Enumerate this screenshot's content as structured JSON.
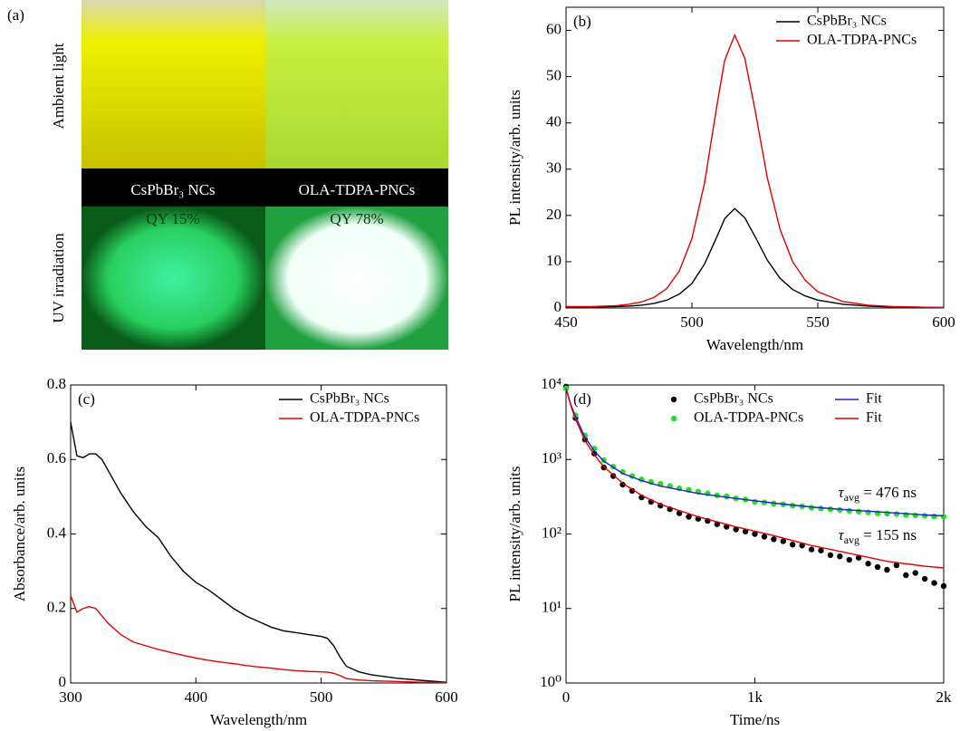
{
  "photo_panel": {
    "panel_label": "(a)",
    "row_labels": [
      "Ambient light",
      "UV irradiation"
    ],
    "sample_names": [
      "CsPbBr₃ NCs",
      "OLA-TDPA-PNCs"
    ],
    "quantum_yields": [
      "QY 15%",
      "QY 78%"
    ]
  },
  "chart_data": [
    {
      "type": "line",
      "panel_label": "(b)",
      "x_label": "Wavelength/nm",
      "y_label": "PL intensity/arb. units",
      "x": [
        450,
        460,
        470,
        475,
        480,
        485,
        490,
        495,
        500,
        505,
        510,
        513,
        517,
        521,
        525,
        530,
        535,
        540,
        545,
        550,
        560,
        570,
        580,
        590,
        600
      ],
      "series": [
        {
          "name": "CsPbBr₃ NCs",
          "color": "#000000",
          "values": [
            0.2,
            0.2,
            0.3,
            0.4,
            0.6,
            1.0,
            1.7,
            3.0,
            5.3,
            9.5,
            15.5,
            19.3,
            21.5,
            19.5,
            15.5,
            10.3,
            6.4,
            4.0,
            2.6,
            1.7,
            0.8,
            0.4,
            0.2,
            0.1,
            0.1
          ]
        },
        {
          "name": "OLA-TDPA-PNCs",
          "color": "#e00000",
          "values": [
            0.3,
            0.3,
            0.5,
            0.8,
            1.3,
            2.3,
            4.2,
            8,
            15,
            27,
            44,
            53.5,
            59,
            54,
            43,
            28,
            17,
            10,
            6,
            3.5,
            1.4,
            0.6,
            0.3,
            0.2,
            0.1
          ]
        }
      ],
      "xlim": [
        450,
        600
      ],
      "xticks": [
        450,
        500,
        550,
        600
      ],
      "ylim": [
        0,
        65
      ],
      "yticks": [
        0,
        10,
        20,
        30,
        40,
        50,
        60
      ],
      "legend": "top-right"
    },
    {
      "type": "line",
      "panel_label": "(c)",
      "x_label": "Wavelength/nm",
      "y_label": "Absorbance/arb. units",
      "x": [
        300,
        305,
        310,
        315,
        320,
        325,
        330,
        340,
        350,
        360,
        370,
        380,
        390,
        400,
        410,
        420,
        430,
        440,
        450,
        460,
        470,
        480,
        490,
        500,
        505,
        510,
        515,
        520,
        530,
        540,
        560,
        580,
        600
      ],
      "series": [
        {
          "name": "CsPbBr₃ NCs",
          "color": "#000000",
          "values": [
            0.7,
            0.61,
            0.605,
            0.615,
            0.615,
            0.6,
            0.57,
            0.51,
            0.46,
            0.42,
            0.39,
            0.34,
            0.3,
            0.27,
            0.25,
            0.225,
            0.2,
            0.18,
            0.165,
            0.15,
            0.14,
            0.135,
            0.13,
            0.125,
            0.12,
            0.1,
            0.07,
            0.045,
            0.03,
            0.022,
            0.013,
            0.007,
            0.002
          ]
        },
        {
          "name": "OLA-TDPA-PNCs",
          "color": "#e00000",
          "values": [
            0.235,
            0.19,
            0.2,
            0.205,
            0.2,
            0.18,
            0.16,
            0.13,
            0.11,
            0.1,
            0.09,
            0.082,
            0.074,
            0.067,
            0.061,
            0.056,
            0.052,
            0.047,
            0.043,
            0.04,
            0.036,
            0.033,
            0.031,
            0.03,
            0.029,
            0.026,
            0.02,
            0.012,
            0.008,
            0.006,
            0.004,
            0.002,
            0.001
          ]
        }
      ],
      "xlim": [
        300,
        600
      ],
      "xticks": [
        300,
        400,
        500,
        600
      ],
      "ylim": [
        0,
        0.8
      ],
      "yticks": [
        0,
        0.2,
        0.4,
        0.6,
        0.8
      ],
      "legend": "top-right"
    },
    {
      "type": "scatter",
      "panel_label": "(d)",
      "x_label": "Time/ns",
      "y_label": "PL intensity/arb. units",
      "log_y": true,
      "series": [
        {
          "name": "CsPbBr₃ NCs",
          "color": "#000000",
          "style": "marker",
          "x": [
            0,
            50,
            100,
            150,
            200,
            250,
            300,
            350,
            400,
            450,
            500,
            550,
            600,
            650,
            700,
            750,
            800,
            850,
            900,
            950,
            1000,
            1050,
            1100,
            1150,
            1200,
            1250,
            1300,
            1350,
            1400,
            1450,
            1500,
            1550,
            1600,
            1650,
            1700,
            1750,
            1800,
            1850,
            1900,
            1950,
            2000
          ],
          "values": [
            9500,
            3600,
            1850,
            1200,
            780,
            600,
            460,
            380,
            310,
            270,
            240,
            215,
            190,
            170,
            160,
            150,
            135,
            125,
            115,
            108,
            100,
            92,
            85,
            80,
            72,
            70,
            62,
            60,
            52,
            50,
            45,
            48,
            40,
            36,
            33,
            38,
            28,
            30,
            25,
            22,
            20
          ]
        },
        {
          "name": "OLA-TDPA-PNCs",
          "color": "#22e022",
          "style": "marker",
          "x": [
            0,
            50,
            100,
            150,
            200,
            250,
            300,
            350,
            400,
            450,
            500,
            550,
            600,
            650,
            700,
            750,
            800,
            850,
            900,
            950,
            1000,
            1050,
            1100,
            1150,
            1200,
            1250,
            1300,
            1350,
            1400,
            1450,
            1500,
            1550,
            1600,
            1650,
            1700,
            1750,
            1800,
            1850,
            1900,
            1950,
            2000
          ],
          "values": [
            9000,
            3900,
            2100,
            1400,
            980,
            800,
            680,
            600,
            540,
            500,
            470,
            440,
            410,
            390,
            370,
            350,
            330,
            320,
            300,
            290,
            270,
            265,
            255,
            250,
            240,
            235,
            225,
            220,
            215,
            210,
            205,
            200,
            195,
            190,
            188,
            185,
            180,
            178,
            175,
            172,
            170
          ]
        },
        {
          "name": "Fit",
          "color": "#2020d0",
          "style": "line",
          "x": [
            0,
            25,
            50,
            100,
            150,
            200,
            300,
            400,
            500,
            700,
            900,
            1100,
            1300,
            1500,
            1700,
            1900,
            2000
          ],
          "values": [
            9000,
            5500,
            3800,
            2000,
            1300,
            950,
            650,
            520,
            440,
            350,
            300,
            260,
            230,
            210,
            195,
            180,
            175
          ]
        },
        {
          "name": "Fit",
          "color": "#e00000",
          "style": "line",
          "x": [
            0,
            25,
            50,
            100,
            150,
            200,
            300,
            400,
            500,
            700,
            900,
            1100,
            1300,
            1500,
            1700,
            1900,
            2000
          ],
          "values": [
            9000,
            5300,
            3500,
            1800,
            1150,
            800,
            480,
            330,
            250,
            170,
            125,
            95,
            70,
            55,
            43,
            37,
            35
          ]
        }
      ],
      "xlim": [
        0,
        2000
      ],
      "xticks": [
        0,
        {
          "value": 1000,
          "label": "1k"
        },
        {
          "value": 2000,
          "label": "2k"
        }
      ],
      "ylim": [
        1,
        10000
      ],
      "yticks": [
        {
          "value": 1,
          "label": "10⁰"
        },
        {
          "value": 10,
          "label": "10¹"
        },
        {
          "value": 100,
          "label": "10²"
        },
        {
          "value": 1000,
          "label": "10³"
        },
        {
          "value": 10000,
          "label": "10⁴"
        }
      ],
      "legend": "top-right",
      "annotations": [
        {
          "symbol": "τ",
          "subscript": "avg",
          "text": " = 476 ns"
        },
        {
          "symbol": "τ",
          "subscript": "avg",
          "text": " = 155 ns"
        }
      ]
    }
  ]
}
